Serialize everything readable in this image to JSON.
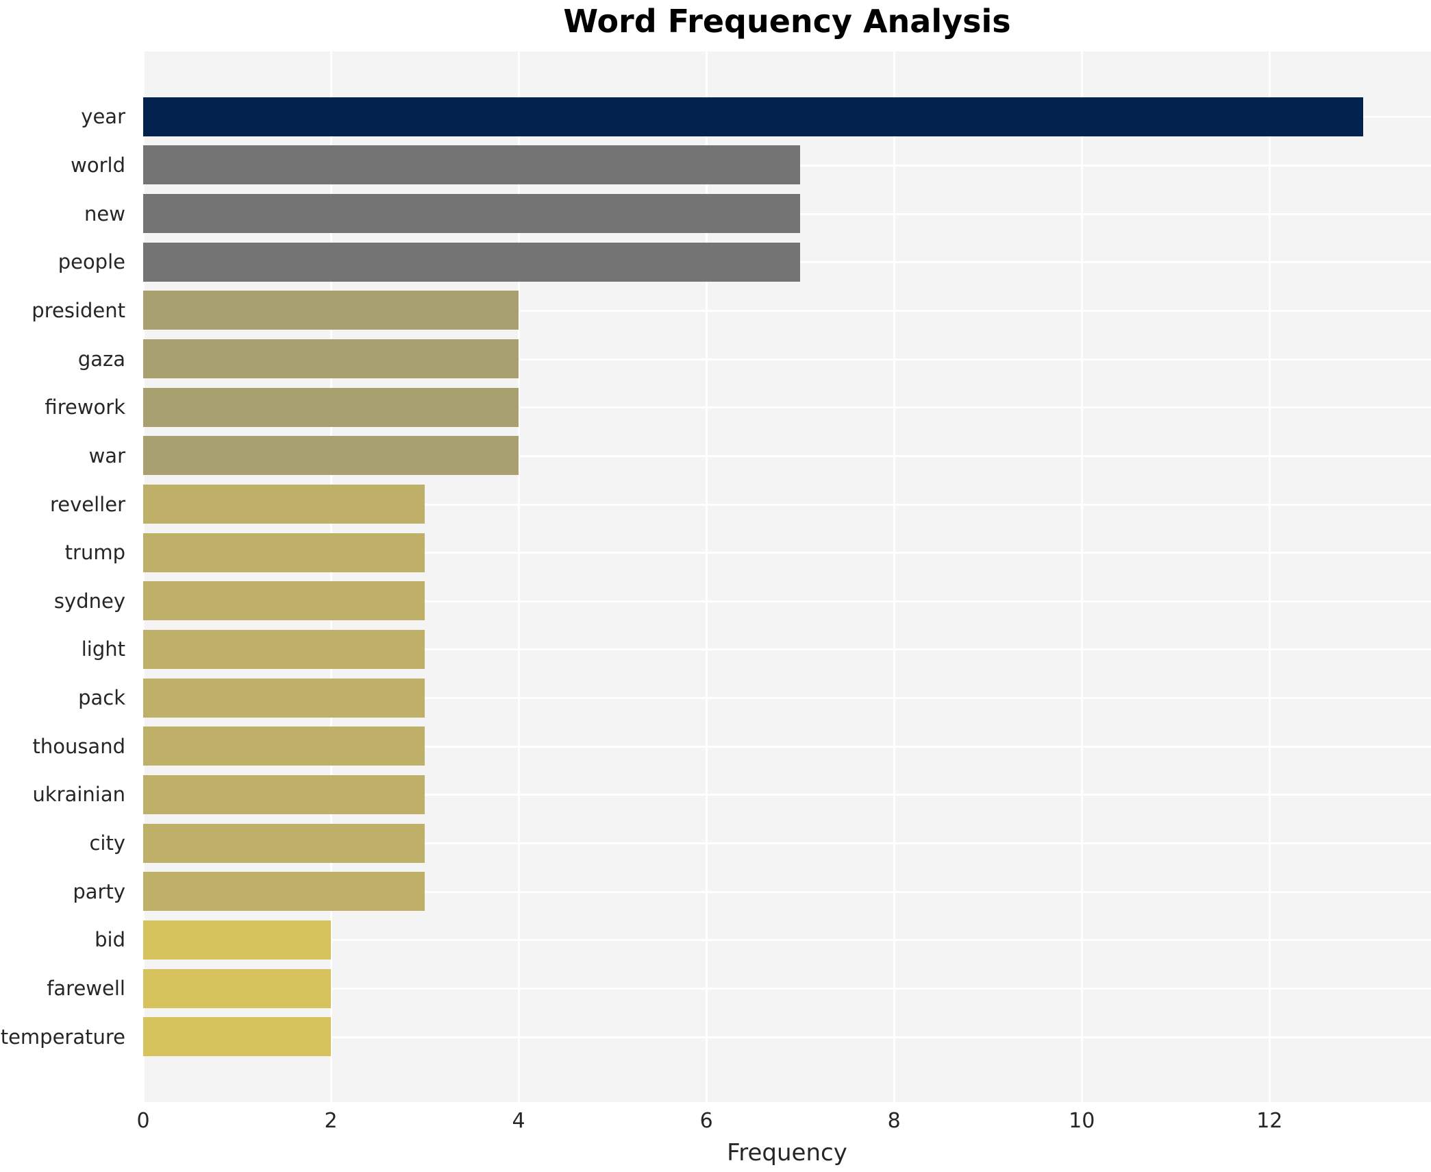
{
  "title": "Word Frequency Analysis",
  "xlabel": "Frequency",
  "chart_data": {
    "type": "bar",
    "orientation": "horizontal",
    "title": "Word Frequency Analysis",
    "xlabel": "Frequency",
    "ylabel": "",
    "categories": [
      "year",
      "world",
      "new",
      "people",
      "president",
      "gaza",
      "firework",
      "war",
      "reveller",
      "trump",
      "sydney",
      "light",
      "pack",
      "thousand",
      "ukrainian",
      "city",
      "party",
      "bid",
      "farewell",
      "temperature"
    ],
    "values": [
      13,
      7,
      7,
      7,
      4,
      4,
      4,
      4,
      3,
      3,
      3,
      3,
      3,
      3,
      3,
      3,
      3,
      2,
      2,
      2
    ],
    "bar_colors": [
      "#02234e",
      "#757474",
      "#757474",
      "#757474",
      "#a9a070",
      "#a9a070",
      "#a9a070",
      "#a9a070",
      "#bfb069",
      "#bfb069",
      "#bfb069",
      "#bfb069",
      "#bfb069",
      "#bfb069",
      "#bfb069",
      "#bfb069",
      "#bfb069",
      "#d6c35d",
      "#d6c35d",
      "#d6c35d"
    ],
    "xlim": [
      0,
      13.72
    ],
    "xticks": [
      0,
      2,
      4,
      6,
      8,
      10,
      12
    ],
    "grid": true,
    "legend": "none",
    "plot_bg": "#f5f4f5",
    "grid_color": "#ffffff",
    "text_color": "#262626"
  }
}
